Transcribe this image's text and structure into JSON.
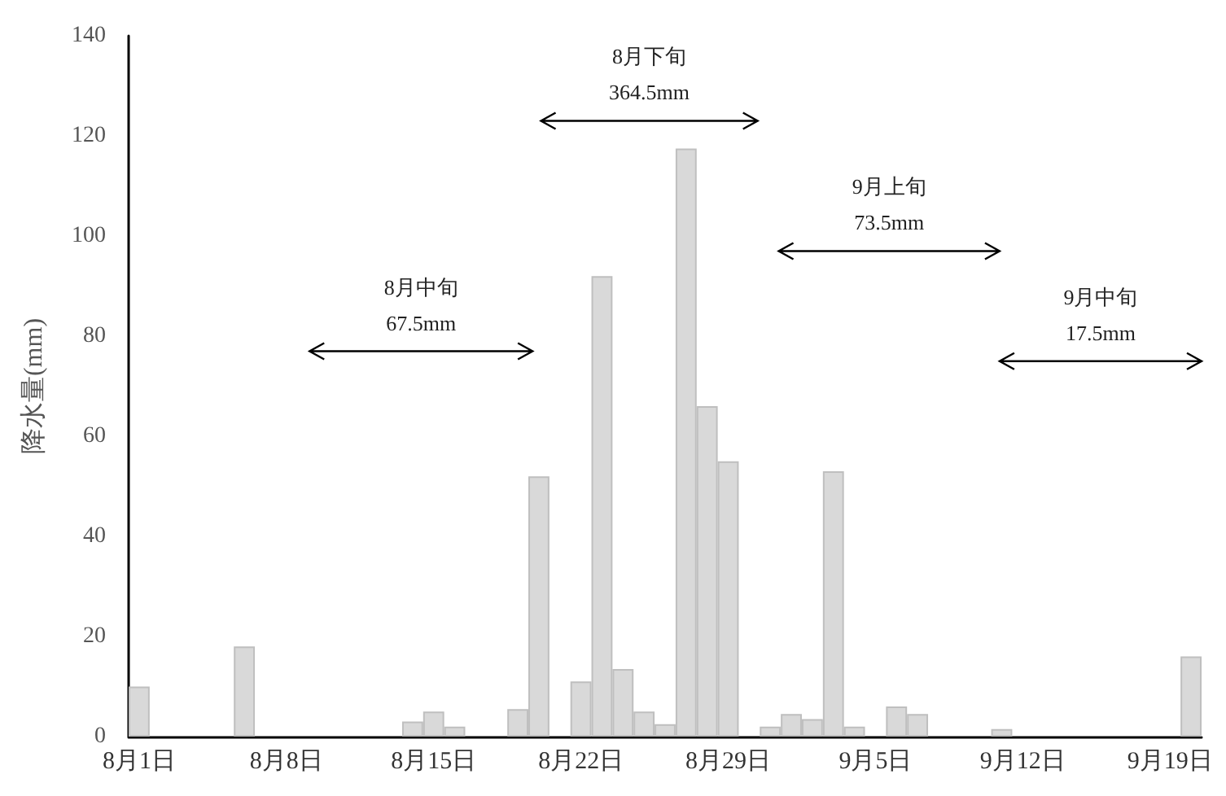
{
  "chart_data": {
    "type": "bar",
    "ylabel": "降水量(mm)",
    "categories": [
      "8月1日",
      null,
      null,
      null,
      null,
      null,
      null,
      "8月8日",
      null,
      null,
      null,
      null,
      null,
      null,
      "8月15日",
      null,
      null,
      null,
      null,
      null,
      null,
      "8月22日",
      null,
      null,
      null,
      null,
      null,
      null,
      "8月29日",
      null,
      null,
      null,
      null,
      null,
      null,
      "9月5日",
      null,
      null,
      null,
      null,
      null,
      null,
      "9月12日",
      null,
      null,
      null,
      null,
      null,
      null,
      "9月19日",
      null
    ],
    "series": [
      {
        "color": "#d9d9d9",
        "values": [
          10,
          0,
          0,
          0,
          0,
          18,
          0,
          0,
          0,
          0,
          0,
          0,
          0,
          3,
          5,
          2,
          0,
          0,
          5.5,
          52,
          0,
          11,
          92,
          13.5,
          5,
          2.5,
          117.5,
          66,
          55,
          0,
          2,
          4.5,
          3.5,
          53,
          2,
          0,
          6,
          4.5,
          0,
          0,
          0,
          1.5,
          0,
          0,
          0,
          0,
          0,
          0,
          0,
          0,
          16
        ]
      }
    ],
    "ylim": [
      0,
      140
    ],
    "yticks": [
      0,
      20,
      40,
      60,
      80,
      100,
      120,
      140
    ],
    "grid": false,
    "annotations": [
      "8月中旬\n67.5mm",
      "8月下旬\n364.5mm",
      "9月上旬\n73.5mm",
      "9月中旬\n17.5mm"
    ]
  }
}
